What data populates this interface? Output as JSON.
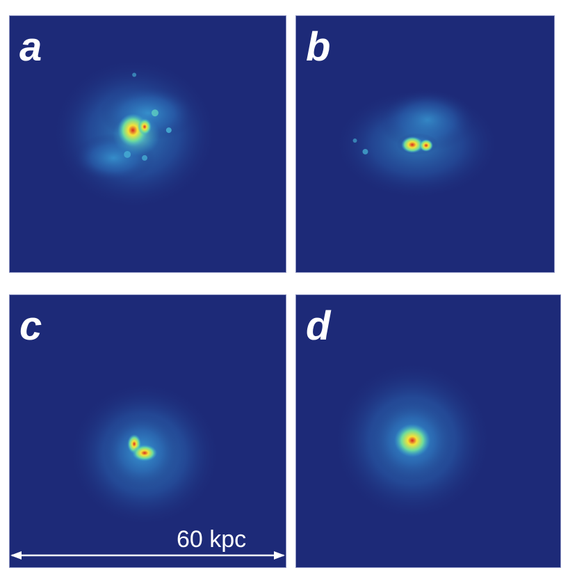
{
  "panels": [
    {
      "id": "a",
      "label": "a"
    },
    {
      "id": "b",
      "label": "b"
    },
    {
      "id": "c",
      "label": "c"
    },
    {
      "id": "d",
      "label": "d"
    }
  ],
  "scale_bar": {
    "label": "60 kpc"
  },
  "colors": {
    "background": "#1d2a78",
    "diffuse": "#2b64b0",
    "mid": "#36a7d6",
    "bright": "#6fdc9b",
    "hot": "#f5e23a",
    "core": "#d62a1e"
  }
}
